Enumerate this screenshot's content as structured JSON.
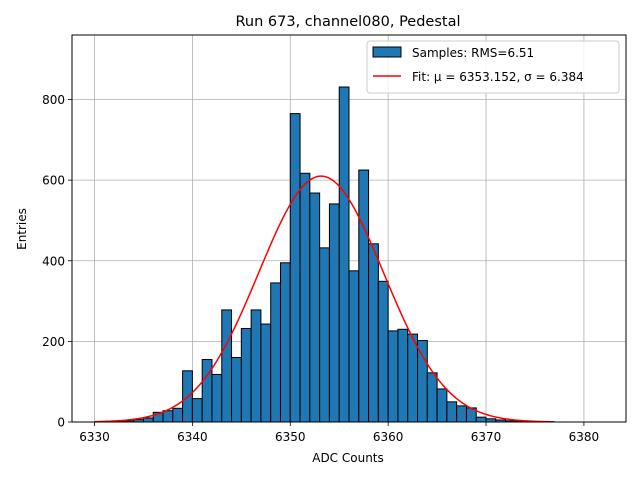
{
  "chart_data": {
    "type": "bar",
    "title": "Run 673, channel080, Pedestal",
    "xlabel": "ADC Counts",
    "ylabel": "Entries",
    "xlim": [
      6327.7,
      6384.3
    ],
    "ylim": [
      0,
      960
    ],
    "xticks": [
      6330,
      6340,
      6350,
      6360,
      6370,
      6380
    ],
    "yticks": [
      0,
      200,
      400,
      600,
      800
    ],
    "grid": true,
    "legend_position": "top-right",
    "bin_width": 1,
    "bin_edges_start": 6332,
    "counts": [
      2,
      3,
      6,
      10,
      24,
      28,
      34,
      127,
      58,
      155,
      118,
      278,
      160,
      232,
      278,
      243,
      345,
      395,
      765,
      617,
      568,
      432,
      541,
      831,
      375,
      625,
      442,
      349,
      226,
      230,
      218,
      202,
      122,
      82,
      50,
      40,
      35,
      12,
      8,
      5,
      3,
      2
    ],
    "series": [
      {
        "name": "Samples: RMS=6.51",
        "kind": "histogram",
        "color": "#1f77b4"
      },
      {
        "name": "Fit: μ = 6353.152, σ = 6.384",
        "kind": "gaussian-fit",
        "color": "#ff0000",
        "mu": 6353.152,
        "sigma": 6.384,
        "amplitude": 610,
        "x_range": [
          6330,
          6377
        ]
      }
    ]
  }
}
